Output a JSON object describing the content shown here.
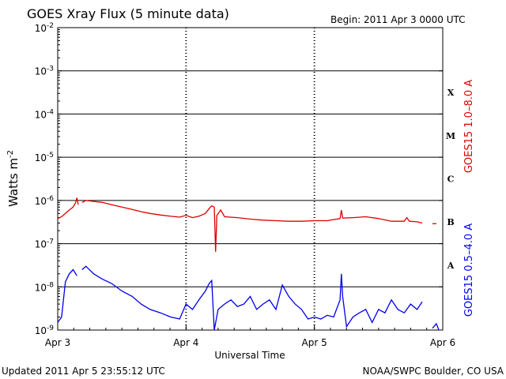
{
  "chart_data": {
    "type": "line",
    "title": "GOES Xray Flux (5 minute data)",
    "begin": "Begin:  2011 Apr 3 0000 UTC",
    "xlabel": "Universal Time",
    "ylabel": "Watts m⁻²",
    "ylabel_main": "Watts m",
    "ylabel_sup": "-2",
    "y_scale": "log",
    "ylim": [
      1e-09,
      0.01
    ],
    "y_ticks": [
      {
        "base": "10",
        "exp": "-2"
      },
      {
        "base": "10",
        "exp": "-3"
      },
      {
        "base": "10",
        "exp": "-4"
      },
      {
        "base": "10",
        "exp": "-5"
      },
      {
        "base": "10",
        "exp": "-6"
      },
      {
        "base": "10",
        "exp": "-7"
      },
      {
        "base": "10",
        "exp": "-8"
      },
      {
        "base": "10",
        "exp": "-9"
      }
    ],
    "x_range_days": [
      0,
      3
    ],
    "x_ticks": [
      "Apr 3",
      "Apr 4",
      "Apr 5",
      "Apr 6"
    ],
    "flare_classes": [
      "X",
      "M",
      "C",
      "B",
      "A"
    ],
    "grid": true,
    "series": [
      {
        "name": "GOES15 1.0–8.0 A",
        "color": "#dd0000",
        "points": [
          [
            0.0,
            3.8e-07
          ],
          [
            0.03,
            4.2e-07
          ],
          [
            0.06,
            5e-07
          ],
          [
            0.09,
            6e-07
          ],
          [
            0.12,
            7e-07
          ],
          [
            0.14,
            9e-07
          ],
          [
            0.15,
            1.15e-06
          ],
          [
            0.16,
            8e-07
          ],
          [
            0.17,
            null
          ],
          [
            0.19,
            9e-07
          ],
          [
            0.22,
            1e-06
          ],
          [
            0.28,
            9.5e-07
          ],
          [
            0.35,
            9e-07
          ],
          [
            0.42,
            8e-07
          ],
          [
            0.5,
            7e-07
          ],
          [
            0.58,
            6.2e-07
          ],
          [
            0.65,
            5.5e-07
          ],
          [
            0.72,
            5e-07
          ],
          [
            0.8,
            4.6e-07
          ],
          [
            0.88,
            4.3e-07
          ],
          [
            0.95,
            4.1e-07
          ],
          [
            1.0,
            4.5e-07
          ],
          [
            1.05,
            4e-07
          ],
          [
            1.1,
            4.3e-07
          ],
          [
            1.15,
            5e-07
          ],
          [
            1.18,
            6.5e-07
          ],
          [
            1.2,
            7.5e-07
          ],
          [
            1.22,
            7e-07
          ],
          [
            1.23,
            6.5e-08
          ],
          [
            1.24,
            4.5e-07
          ],
          [
            1.27,
            6e-07
          ],
          [
            1.3,
            4.2e-07
          ],
          [
            1.4,
            4e-07
          ],
          [
            1.5,
            3.7e-07
          ],
          [
            1.6,
            3.5e-07
          ],
          [
            1.7,
            3.4e-07
          ],
          [
            1.8,
            3.3e-07
          ],
          [
            1.9,
            3.3e-07
          ],
          [
            2.0,
            3.4e-07
          ],
          [
            2.1,
            3.4e-07
          ],
          [
            2.2,
            3.8e-07
          ],
          [
            2.21,
            6e-07
          ],
          [
            2.22,
            3.9e-07
          ],
          [
            2.3,
            4e-07
          ],
          [
            2.4,
            4.2e-07
          ],
          [
            2.5,
            3.8e-07
          ],
          [
            2.6,
            3.3e-07
          ],
          [
            2.7,
            3.3e-07
          ],
          [
            2.72,
            4e-07
          ],
          [
            2.74,
            3.3e-07
          ],
          [
            2.8,
            3.2e-07
          ],
          [
            2.84,
            3e-07
          ],
          [
            2.86,
            null
          ],
          [
            2.92,
            2.9e-07
          ],
          [
            2.95,
            2.9e-07
          ]
        ]
      },
      {
        "name": "GOES15 0.5–4.0 A",
        "color": "#0000ee",
        "points": [
          [
            0.0,
            1.5e-09
          ],
          [
            0.03,
            2e-09
          ],
          [
            0.06,
            1.3e-08
          ],
          [
            0.09,
            2e-08
          ],
          [
            0.12,
            2.5e-08
          ],
          [
            0.15,
            1.8e-08
          ],
          [
            0.16,
            null
          ],
          [
            0.19,
            2.5e-08
          ],
          [
            0.22,
            3e-08
          ],
          [
            0.28,
            2e-08
          ],
          [
            0.35,
            1.5e-08
          ],
          [
            0.42,
            1.2e-08
          ],
          [
            0.5,
            8e-09
          ],
          [
            0.58,
            6e-09
          ],
          [
            0.65,
            4e-09
          ],
          [
            0.72,
            3e-09
          ],
          [
            0.8,
            2.5e-09
          ],
          [
            0.88,
            2e-09
          ],
          [
            0.95,
            1.8e-09
          ],
          [
            1.0,
            4e-09
          ],
          [
            1.05,
            3e-09
          ],
          [
            1.1,
            5e-09
          ],
          [
            1.15,
            8e-09
          ],
          [
            1.18,
            1.2e-08
          ],
          [
            1.2,
            1.4e-08
          ],
          [
            1.22,
            1e-09
          ],
          [
            1.25,
            3e-09
          ],
          [
            1.3,
            4e-09
          ],
          [
            1.35,
            5e-09
          ],
          [
            1.4,
            3.5e-09
          ],
          [
            1.45,
            4e-09
          ],
          [
            1.5,
            6e-09
          ],
          [
            1.55,
            3e-09
          ],
          [
            1.6,
            4e-09
          ],
          [
            1.65,
            5e-09
          ],
          [
            1.7,
            3e-09
          ],
          [
            1.75,
            1.1e-08
          ],
          [
            1.8,
            6e-09
          ],
          [
            1.85,
            4e-09
          ],
          [
            1.9,
            3e-09
          ],
          [
            1.95,
            1.8e-09
          ],
          [
            2.0,
            2e-09
          ],
          [
            2.05,
            1.8e-09
          ],
          [
            2.1,
            2.2e-09
          ],
          [
            2.15,
            2e-09
          ],
          [
            2.2,
            5e-09
          ],
          [
            2.21,
            2e-08
          ],
          [
            2.22,
            6e-09
          ],
          [
            2.25,
            1.2e-09
          ],
          [
            2.3,
            2e-09
          ],
          [
            2.35,
            2.5e-09
          ],
          [
            2.4,
            3e-09
          ],
          [
            2.45,
            1.5e-09
          ],
          [
            2.5,
            3e-09
          ],
          [
            2.55,
            2.5e-09
          ],
          [
            2.6,
            5e-09
          ],
          [
            2.65,
            3e-09
          ],
          [
            2.7,
            2.5e-09
          ],
          [
            2.75,
            4e-09
          ],
          [
            2.8,
            3e-09
          ],
          [
            2.84,
            4.5e-09
          ],
          [
            2.86,
            null
          ],
          [
            2.92,
            1.1e-09
          ],
          [
            2.95,
            1.4e-09
          ],
          [
            2.97,
            1e-09
          ]
        ]
      }
    ]
  },
  "footer": {
    "updated": "Updated 2011 Apr  5 23:55:12 UTC",
    "source": "NOAA/SWPC Boulder, CO USA"
  }
}
